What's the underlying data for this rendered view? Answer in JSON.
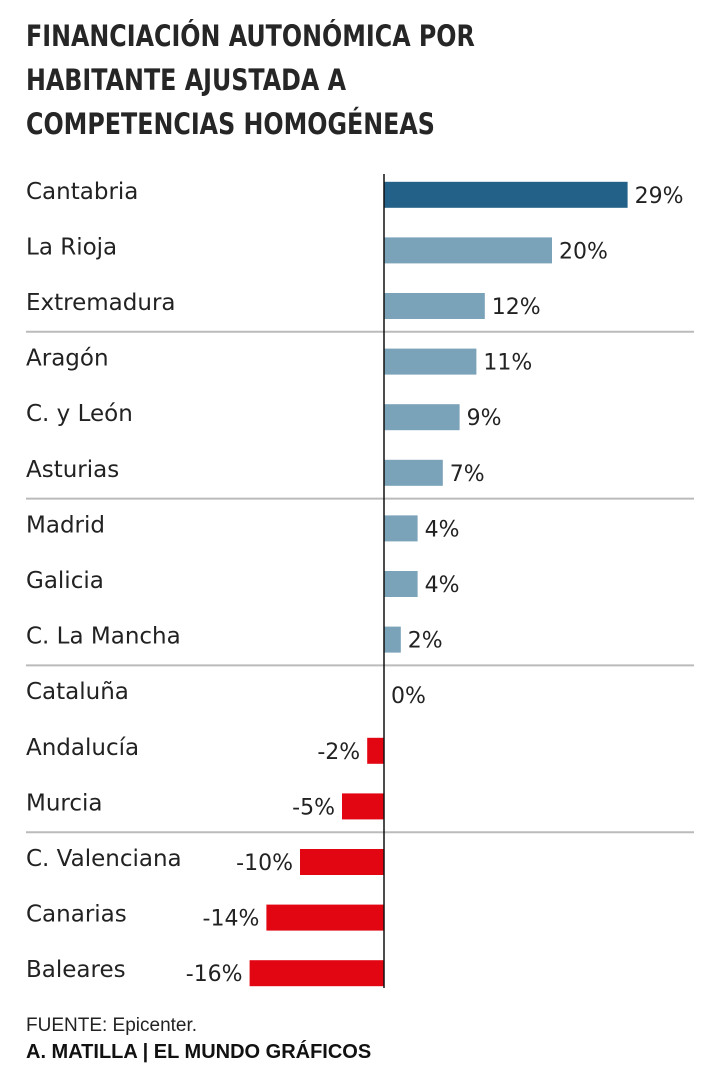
{
  "title_lines": [
    "FINANCIACIÓN AUTONÓMICA POR",
    "HABITANTE AJUSTADA A",
    "COMPETENCIAS HOMOGÉNEAS"
  ],
  "chart_data": {
    "type": "bar",
    "orientation": "horizontal",
    "title": "FINANCIACIÓN AUTONÓMICA POR HABITANTE AJUSTADA A COMPETENCIAS HOMOGÉNEAS",
    "categories": [
      "Cantabria",
      "La Rioja",
      "Extremadura",
      "Aragón",
      "C. y León",
      "Asturias",
      "Madrid",
      "Galicia",
      "C. La Mancha",
      "Cataluña",
      "Andalucía",
      "Murcia",
      "C. Valenciana",
      "Canarias",
      "Baleares"
    ],
    "values": [
      29,
      20,
      12,
      11,
      9,
      7,
      4,
      4,
      2,
      0,
      -2,
      -5,
      -10,
      -14,
      -16
    ],
    "labels": [
      "29%",
      "20%",
      "12%",
      "11%",
      "9%",
      "7%",
      "4%",
      "4%",
      "2%",
      "0%",
      "-2%",
      "-5%",
      "-10%",
      "-14%",
      "-16%"
    ],
    "unit": "%",
    "xlabel": "",
    "ylabel": "",
    "xlim": [
      -16,
      29
    ],
    "group_separators_after_index": [
      2,
      5,
      8,
      11
    ],
    "grid": false,
    "colors": {
      "highlight": "#236189",
      "positive": "#7aa2b8",
      "negative": "#e20613",
      "axis": "#111111",
      "separator": "#bbbbbb"
    },
    "highlight_index": 0
  },
  "footer": {
    "source": "FUENTE: Epicenter.",
    "credit": "A. MATILLA | EL MUNDO GRÁFICOS"
  }
}
